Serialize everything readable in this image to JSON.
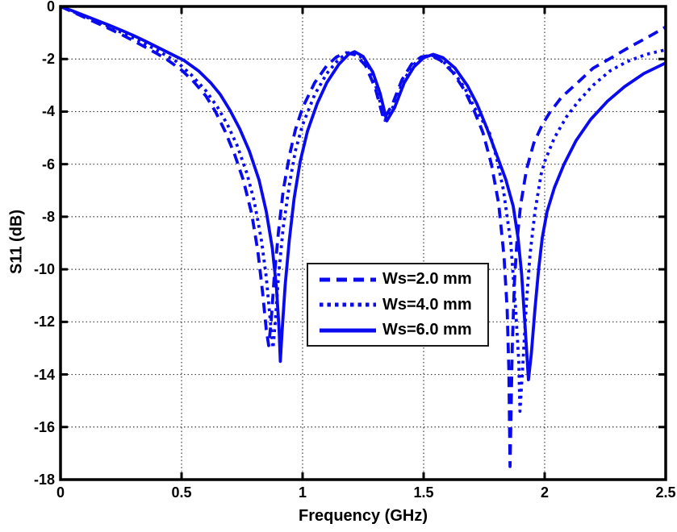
{
  "chart_data": {
    "type": "line",
    "title": "",
    "xlabel": "Frequency (GHz)",
    "ylabel": "S11 (dB)",
    "xlim": [
      0,
      2.5
    ],
    "ylim": [
      -18,
      0
    ],
    "grid": "dotted, on",
    "legend_position": "center of plot, below mid-band humps",
    "line_color": "#0a0aee",
    "axis_color": "#000000",
    "background_color": "#ffffff",
    "x_ticks": [
      {
        "value": 0,
        "label": "0"
      },
      {
        "value": 0.5,
        "label": "0.5"
      },
      {
        "value": 1,
        "label": "1"
      },
      {
        "value": 1.5,
        "label": "1.5"
      },
      {
        "value": 2,
        "label": "2"
      },
      {
        "value": 2.5,
        "label": "2.5"
      }
    ],
    "y_ticks": [
      {
        "value": 0,
        "label": "0"
      },
      {
        "value": -2,
        "label": "-2"
      },
      {
        "value": -4,
        "label": "-4"
      },
      {
        "value": -6,
        "label": "-6"
      },
      {
        "value": -8,
        "label": "-8"
      },
      {
        "value": -10,
        "label": "-10"
      },
      {
        "value": -12,
        "label": "-12"
      },
      {
        "value": -14,
        "label": "-14"
      },
      {
        "value": -16,
        "label": "-16"
      },
      {
        "value": -18,
        "label": "-18"
      }
    ],
    "series": [
      {
        "name": "Ws=2.0 mm",
        "style": "dashed",
        "resonances": [
          {
            "f_ghz": 0.86,
            "s11_db": -12.9
          },
          {
            "f_ghz": 1.857,
            "s11_db": -17.5
          }
        ],
        "points": [
          [
            0,
            0
          ],
          [
            0.05,
            -0.21
          ],
          [
            0.1,
            -0.42
          ],
          [
            0.15,
            -0.63
          ],
          [
            0.2,
            -0.84
          ],
          [
            0.25,
            -1.06
          ],
          [
            0.3,
            -1.3
          ],
          [
            0.35,
            -1.55
          ],
          [
            0.4,
            -1.8
          ],
          [
            0.44,
            -2.02
          ],
          [
            0.5,
            -2.42
          ],
          [
            0.55,
            -2.86
          ],
          [
            0.6,
            -3.4
          ],
          [
            0.64,
            -4.0
          ],
          [
            0.68,
            -4.75
          ],
          [
            0.72,
            -5.65
          ],
          [
            0.755,
            -6.6
          ],
          [
            0.79,
            -7.9
          ],
          [
            0.815,
            -9.3
          ],
          [
            0.835,
            -10.9
          ],
          [
            0.85,
            -12.3
          ],
          [
            0.86,
            -12.9
          ],
          [
            0.87,
            -12.0
          ],
          [
            0.882,
            -10.4
          ],
          [
            0.9,
            -8.6
          ],
          [
            0.92,
            -7.0
          ],
          [
            0.945,
            -5.7
          ],
          [
            0.97,
            -4.7
          ],
          [
            1.0,
            -3.85
          ],
          [
            1.05,
            -2.9
          ],
          [
            1.1,
            -2.25
          ],
          [
            1.14,
            -1.92
          ],
          [
            1.18,
            -1.76
          ],
          [
            1.22,
            -1.85
          ],
          [
            1.26,
            -2.25
          ],
          [
            1.3,
            -3.1
          ],
          [
            1.335,
            -4.3
          ],
          [
            1.37,
            -3.75
          ],
          [
            1.41,
            -2.8
          ],
          [
            1.45,
            -2.2
          ],
          [
            1.49,
            -1.92
          ],
          [
            1.53,
            -1.86
          ],
          [
            1.57,
            -2.05
          ],
          [
            1.62,
            -2.5
          ],
          [
            1.67,
            -3.2
          ],
          [
            1.71,
            -4.0
          ],
          [
            1.745,
            -4.8
          ],
          [
            1.78,
            -6.0
          ],
          [
            1.81,
            -7.5
          ],
          [
            1.832,
            -9.5
          ],
          [
            1.845,
            -11.5
          ],
          [
            1.852,
            -13.8
          ],
          [
            1.857,
            -17.5
          ],
          [
            1.866,
            -13.0
          ],
          [
            1.875,
            -10.5
          ],
          [
            1.885,
            -9.0
          ],
          [
            1.9,
            -7.6
          ],
          [
            1.925,
            -6.2
          ],
          [
            1.955,
            -5.2
          ],
          [
            1.99,
            -4.5
          ],
          [
            2.02,
            -4.05
          ],
          [
            2.07,
            -3.45
          ],
          [
            2.13,
            -2.95
          ],
          [
            2.2,
            -2.35
          ],
          [
            2.27,
            -1.98
          ],
          [
            2.35,
            -1.55
          ],
          [
            2.43,
            -1.15
          ],
          [
            2.5,
            -0.78
          ]
        ]
      },
      {
        "name": "Ws=4.0 mm",
        "style": "dotted",
        "resonances": [
          {
            "f_ghz": 0.878,
            "s11_db": -13.0
          },
          {
            "f_ghz": 1.898,
            "s11_db": -15.4
          }
        ],
        "points": [
          [
            0,
            0
          ],
          [
            0.05,
            -0.19
          ],
          [
            0.1,
            -0.38
          ],
          [
            0.15,
            -0.57
          ],
          [
            0.2,
            -0.77
          ],
          [
            0.25,
            -0.98
          ],
          [
            0.3,
            -1.2
          ],
          [
            0.35,
            -1.43
          ],
          [
            0.4,
            -1.67
          ],
          [
            0.48,
            -2.1
          ],
          [
            0.54,
            -2.6
          ],
          [
            0.6,
            -3.2
          ],
          [
            0.65,
            -3.85
          ],
          [
            0.69,
            -4.5
          ],
          [
            0.73,
            -5.3
          ],
          [
            0.77,
            -6.35
          ],
          [
            0.8,
            -7.4
          ],
          [
            0.83,
            -8.9
          ],
          [
            0.85,
            -10.3
          ],
          [
            0.866,
            -11.9
          ],
          [
            0.878,
            -13.0
          ],
          [
            0.888,
            -11.9
          ],
          [
            0.9,
            -10.3
          ],
          [
            0.92,
            -8.4
          ],
          [
            0.945,
            -6.8
          ],
          [
            0.97,
            -5.5
          ],
          [
            1.0,
            -4.5
          ],
          [
            1.05,
            -3.35
          ],
          [
            1.1,
            -2.55
          ],
          [
            1.15,
            -2.0
          ],
          [
            1.19,
            -1.76
          ],
          [
            1.23,
            -1.83
          ],
          [
            1.27,
            -2.2
          ],
          [
            1.305,
            -3.1
          ],
          [
            1.34,
            -4.33
          ],
          [
            1.375,
            -3.8
          ],
          [
            1.415,
            -2.85
          ],
          [
            1.455,
            -2.25
          ],
          [
            1.49,
            -1.95
          ],
          [
            1.53,
            -1.84
          ],
          [
            1.57,
            -2.0
          ],
          [
            1.62,
            -2.45
          ],
          [
            1.67,
            -3.1
          ],
          [
            1.71,
            -3.85
          ],
          [
            1.77,
            -4.75
          ],
          [
            1.8,
            -5.7
          ],
          [
            1.83,
            -7.0
          ],
          [
            1.86,
            -9.0
          ],
          [
            1.88,
            -11.5
          ],
          [
            1.893,
            -13.5
          ],
          [
            1.898,
            -15.4
          ],
          [
            1.91,
            -13.6
          ],
          [
            1.925,
            -11.2
          ],
          [
            1.94,
            -9.4
          ],
          [
            1.96,
            -7.8
          ],
          [
            1.985,
            -6.4
          ],
          [
            2.0,
            -5.9
          ],
          [
            2.04,
            -5.0
          ],
          [
            2.09,
            -4.2
          ],
          [
            2.14,
            -3.6
          ],
          [
            2.2,
            -3.0
          ],
          [
            2.27,
            -2.45
          ],
          [
            2.34,
            -2.1
          ],
          [
            2.42,
            -1.82
          ],
          [
            2.5,
            -1.65
          ]
        ]
      },
      {
        "name": "Ws=6.0 mm",
        "style": "solid",
        "resonances": [
          {
            "f_ghz": 0.908,
            "s11_db": -13.5
          },
          {
            "f_ghz": 1.933,
            "s11_db": -14.2
          }
        ],
        "points": [
          [
            0,
            0
          ],
          [
            0.05,
            -0.17
          ],
          [
            0.1,
            -0.35
          ],
          [
            0.15,
            -0.53
          ],
          [
            0.2,
            -0.71
          ],
          [
            0.25,
            -0.9
          ],
          [
            0.3,
            -1.1
          ],
          [
            0.35,
            -1.32
          ],
          [
            0.4,
            -1.55
          ],
          [
            0.45,
            -1.78
          ],
          [
            0.51,
            -2.05
          ],
          [
            0.57,
            -2.45
          ],
          [
            0.62,
            -2.9
          ],
          [
            0.66,
            -3.35
          ],
          [
            0.7,
            -3.95
          ],
          [
            0.74,
            -4.65
          ],
          [
            0.78,
            -5.5
          ],
          [
            0.82,
            -6.6
          ],
          [
            0.85,
            -7.8
          ],
          [
            0.875,
            -9.2
          ],
          [
            0.892,
            -10.7
          ],
          [
            0.903,
            -12.3
          ],
          [
            0.908,
            -13.5
          ],
          [
            0.915,
            -12.4
          ],
          [
            0.928,
            -10.6
          ],
          [
            0.945,
            -8.9
          ],
          [
            0.965,
            -7.3
          ],
          [
            0.99,
            -5.9
          ],
          [
            1.02,
            -4.75
          ],
          [
            1.06,
            -3.7
          ],
          [
            1.1,
            -2.9
          ],
          [
            1.15,
            -2.2
          ],
          [
            1.19,
            -1.82
          ],
          [
            1.215,
            -1.72
          ],
          [
            1.25,
            -1.9
          ],
          [
            1.29,
            -2.5
          ],
          [
            1.32,
            -3.3
          ],
          [
            1.348,
            -4.35
          ],
          [
            1.38,
            -3.85
          ],
          [
            1.42,
            -2.9
          ],
          [
            1.46,
            -2.3
          ],
          [
            1.5,
            -1.95
          ],
          [
            1.54,
            -1.82
          ],
          [
            1.58,
            -1.95
          ],
          [
            1.63,
            -2.35
          ],
          [
            1.68,
            -3.0
          ],
          [
            1.72,
            -3.7
          ],
          [
            1.76,
            -4.6
          ],
          [
            1.8,
            -5.6
          ],
          [
            1.84,
            -6.6
          ],
          [
            1.87,
            -7.6
          ],
          [
            1.89,
            -8.8
          ],
          [
            1.905,
            -10.2
          ],
          [
            1.92,
            -12.3
          ],
          [
            1.933,
            -14.2
          ],
          [
            1.945,
            -13.2
          ],
          [
            1.96,
            -11.5
          ],
          [
            1.975,
            -10.0
          ],
          [
            1.99,
            -8.8
          ],
          [
            2.01,
            -7.8
          ],
          [
            2.04,
            -6.9
          ],
          [
            2.08,
            -6.0
          ],
          [
            2.13,
            -5.1
          ],
          [
            2.19,
            -4.3
          ],
          [
            2.26,
            -3.6
          ],
          [
            2.33,
            -3.05
          ],
          [
            2.41,
            -2.55
          ],
          [
            2.5,
            -2.15
          ]
        ]
      }
    ]
  }
}
